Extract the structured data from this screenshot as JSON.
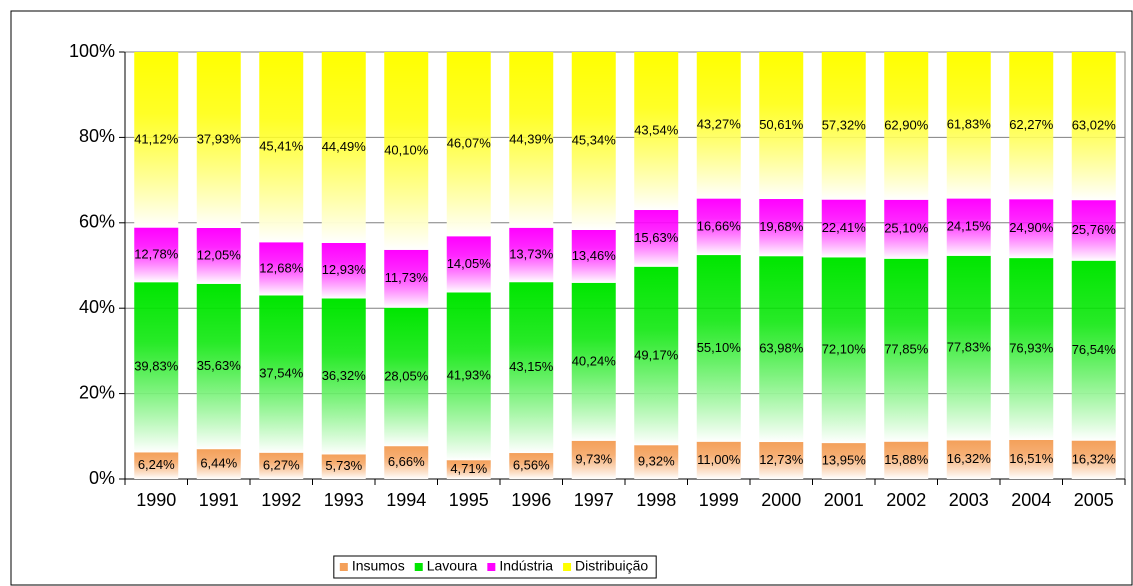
{
  "chart_data": {
    "type": "bar",
    "stack": "percent",
    "categories": [
      "1990",
      "1991",
      "1992",
      "1993",
      "1994",
      "1995",
      "1996",
      "1997",
      "1998",
      "1999",
      "2000",
      "2001",
      "2002",
      "2003",
      "2004",
      "2005"
    ],
    "series": [
      {
        "name": "Insumos",
        "color": "#f4a05a",
        "values": [
          6.24,
          6.44,
          6.27,
          5.73,
          6.66,
          4.71,
          6.56,
          9.73,
          9.32,
          11.0,
          12.73,
          13.95,
          15.88,
          16.32,
          16.51,
          16.32
        ],
        "value_labels": [
          "6,24%",
          "6,44%",
          "6,27%",
          "5,73%",
          "6,66%",
          "4,71%",
          "6,56%",
          "9,73%",
          "9,32%",
          "11,00%",
          "12,73%",
          "13,95%",
          "15,88%",
          "16,32%",
          "16,51%",
          "16,32%"
        ]
      },
      {
        "name": "Lavoura",
        "color": "#00e600",
        "values": [
          39.83,
          35.63,
          37.54,
          36.32,
          28.05,
          41.93,
          43.15,
          40.24,
          49.17,
          55.1,
          63.98,
          72.1,
          77.85,
          77.83,
          76.93,
          76.54
        ],
        "value_labels": [
          "39,83%",
          "35,63%",
          "37,54%",
          "36,32%",
          "28,05%",
          "41,93%",
          "43,15%",
          "40,24%",
          "49,17%",
          "55,10%",
          "63,98%",
          "72,10%",
          "77,85%",
          "77,83%",
          "76,93%",
          "76,54%"
        ]
      },
      {
        "name": "Indústria",
        "color": "#ff00ff",
        "values": [
          12.78,
          12.05,
          12.68,
          12.93,
          11.73,
          14.05,
          13.73,
          13.46,
          15.63,
          16.66,
          19.68,
          22.41,
          25.1,
          24.15,
          24.9,
          25.76
        ],
        "value_labels": [
          "12,78%",
          "12,05%",
          "12,68%",
          "12,93%",
          "11,73%",
          "14,05%",
          "13,73%",
          "13,46%",
          "15,63%",
          "16,66%",
          "19,68%",
          "22,41%",
          "25,10%",
          "24,15%",
          "24,90%",
          "25,76%"
        ]
      },
      {
        "name": "Distribuição",
        "color": "#ffff00",
        "values": [
          41.12,
          37.93,
          45.41,
          44.49,
          40.1,
          46.07,
          44.39,
          45.34,
          43.54,
          43.27,
          50.61,
          57.32,
          62.9,
          61.83,
          62.27,
          63.02
        ],
        "value_labels": [
          "41,12%",
          "37,93%",
          "45,41%",
          "44,49%",
          "40,10%",
          "46,07%",
          "44,39%",
          "45,34%",
          "43,54%",
          "43,27%",
          "50,61%",
          "57,32%",
          "62,90%",
          "61,83%",
          "62,27%",
          "63,02%"
        ]
      }
    ],
    "ylim": [
      0,
      100
    ],
    "yticks": [
      {
        "value": 0,
        "label": "0%"
      },
      {
        "value": 20,
        "label": "20%"
      },
      {
        "value": 40,
        "label": "40%"
      },
      {
        "value": 60,
        "label": "60%"
      },
      {
        "value": 80,
        "label": "80%"
      },
      {
        "value": 100,
        "label": "100%"
      }
    ],
    "grid": true,
    "legend": "bottom"
  }
}
